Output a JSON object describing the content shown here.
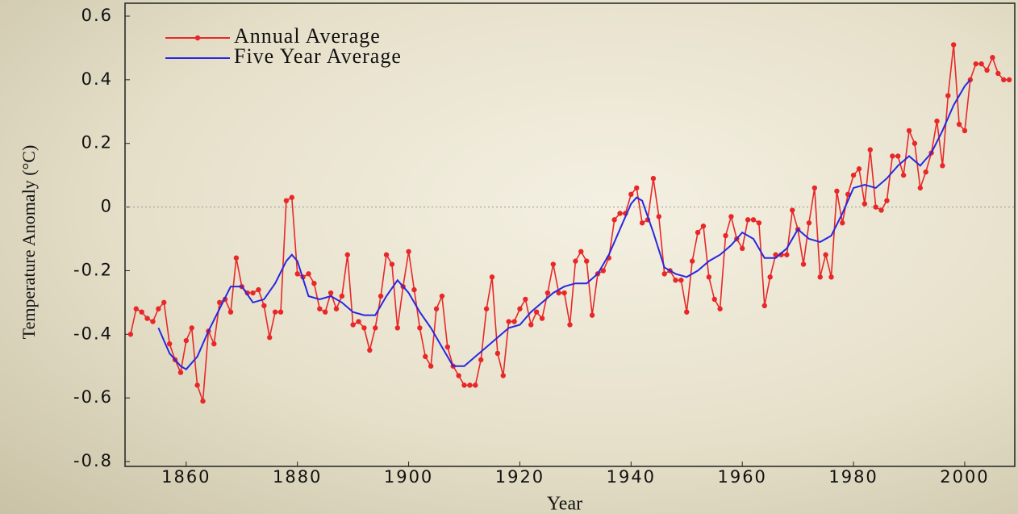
{
  "chart_data": {
    "type": "line",
    "x_label": "Year",
    "y_label": "Temperature Anomaly (°C)",
    "xlim": [
      1849,
      2009
    ],
    "ylim": [
      -0.8,
      0.6
    ],
    "xticks": [
      1860,
      1880,
      1900,
      1920,
      1940,
      1960,
      1980,
      2000
    ],
    "yticks": [
      -0.8,
      -0.6,
      -0.4,
      -0.2,
      0,
      0.2,
      0.4,
      0.6
    ],
    "zero_line": true,
    "legend": "top-left",
    "series": [
      {
        "name": "Annual Average",
        "color": "#e82828",
        "markers": true,
        "x": [
          1850,
          1851,
          1852,
          1853,
          1854,
          1855,
          1856,
          1857,
          1858,
          1859,
          1860,
          1861,
          1862,
          1863,
          1864,
          1865,
          1866,
          1867,
          1868,
          1869,
          1870,
          1871,
          1872,
          1873,
          1874,
          1875,
          1876,
          1877,
          1878,
          1879,
          1880,
          1881,
          1882,
          1883,
          1884,
          1885,
          1886,
          1887,
          1888,
          1889,
          1890,
          1891,
          1892,
          1893,
          1894,
          1895,
          1896,
          1897,
          1898,
          1899,
          1900,
          1901,
          1902,
          1903,
          1904,
          1905,
          1906,
          1907,
          1908,
          1909,
          1910,
          1911,
          1912,
          1913,
          1914,
          1915,
          1916,
          1917,
          1918,
          1919,
          1920,
          1921,
          1922,
          1923,
          1924,
          1925,
          1926,
          1927,
          1928,
          1929,
          1930,
          1931,
          1932,
          1933,
          1934,
          1935,
          1936,
          1937,
          1938,
          1939,
          1940,
          1941,
          1942,
          1943,
          1944,
          1945,
          1946,
          1947,
          1948,
          1949,
          1950,
          1951,
          1952,
          1953,
          1954,
          1955,
          1956,
          1957,
          1958,
          1959,
          1960,
          1961,
          1962,
          1963,
          1964,
          1965,
          1966,
          1967,
          1968,
          1969,
          1970,
          1971,
          1972,
          1973,
          1974,
          1975,
          1976,
          1977,
          1978,
          1979,
          1980,
          1981,
          1982,
          1983,
          1984,
          1985,
          1986,
          1987,
          1988,
          1989,
          1990,
          1991,
          1992,
          1993,
          1994,
          1995,
          1996,
          1997,
          1998,
          1999,
          2000,
          2001,
          2002,
          2003,
          2004,
          2005,
          2006,
          2007,
          2008
        ],
        "values": [
          -0.4,
          -0.32,
          -0.33,
          -0.35,
          -0.36,
          -0.32,
          -0.3,
          -0.43,
          -0.48,
          -0.52,
          -0.42,
          -0.38,
          -0.56,
          -0.61,
          -0.39,
          -0.43,
          -0.3,
          -0.29,
          -0.33,
          -0.16,
          -0.25,
          -0.27,
          -0.27,
          -0.26,
          -0.31,
          -0.41,
          -0.33,
          -0.33,
          0.02,
          0.03,
          -0.21,
          -0.22,
          -0.21,
          -0.24,
          -0.32,
          -0.33,
          -0.27,
          -0.32,
          -0.28,
          -0.15,
          -0.37,
          -0.36,
          -0.38,
          -0.45,
          -0.38,
          -0.28,
          -0.15,
          -0.18,
          -0.38,
          -0.25,
          -0.14,
          -0.26,
          -0.38,
          -0.47,
          -0.5,
          -0.32,
          -0.28,
          -0.44,
          -0.5,
          -0.53,
          -0.56,
          -0.56,
          -0.56,
          -0.48,
          -0.32,
          -0.22,
          -0.46,
          -0.53,
          -0.36,
          -0.36,
          -0.32,
          -0.29,
          -0.37,
          -0.33,
          -0.35,
          -0.27,
          -0.18,
          -0.27,
          -0.27,
          -0.37,
          -0.17,
          -0.14,
          -0.17,
          -0.34,
          -0.21,
          -0.2,
          -0.16,
          -0.04,
          -0.02,
          -0.02,
          0.04,
          0.06,
          -0.05,
          -0.04,
          0.09,
          -0.03,
          -0.21,
          -0.2,
          -0.23,
          -0.23,
          -0.33,
          -0.17,
          -0.08,
          -0.06,
          -0.22,
          -0.29,
          -0.32,
          -0.09,
          -0.03,
          -0.1,
          -0.13,
          -0.04,
          -0.04,
          -0.05,
          -0.31,
          -0.22,
          -0.15,
          -0.15,
          -0.15,
          -0.01,
          -0.07,
          -0.18,
          -0.05,
          0.06,
          -0.22,
          -0.15,
          -0.22,
          0.05,
          -0.05,
          0.04,
          0.1,
          0.12,
          0.01,
          0.18,
          0.0,
          -0.01,
          0.02,
          0.16,
          0.16,
          0.1,
          0.24,
          0.2,
          0.06,
          0.11,
          0.17,
          0.27,
          0.13,
          0.35,
          0.51,
          0.26,
          0.24,
          0.4,
          0.45,
          0.45,
          0.43,
          0.47,
          0.42,
          0.4,
          0.4
        ]
      },
      {
        "name": "Five Year Average",
        "color": "#2828e0",
        "markers": false,
        "x": [
          1855,
          1857,
          1859,
          1860,
          1862,
          1864,
          1866,
          1868,
          1870,
          1872,
          1874,
          1876,
          1878,
          1879,
          1880,
          1882,
          1884,
          1886,
          1888,
          1890,
          1892,
          1894,
          1896,
          1898,
          1900,
          1902,
          1904,
          1906,
          1908,
          1910,
          1912,
          1914,
          1916,
          1918,
          1920,
          1922,
          1924,
          1926,
          1928,
          1930,
          1932,
          1934,
          1936,
          1938,
          1940,
          1941,
          1942,
          1944,
          1946,
          1948,
          1950,
          1952,
          1954,
          1956,
          1958,
          1960,
          1962,
          1964,
          1966,
          1968,
          1970,
          1972,
          1974,
          1976,
          1978,
          1980,
          1982,
          1984,
          1986,
          1988,
          1990,
          1992,
          1994,
          1996,
          1998,
          2000,
          2001
        ],
        "values": [
          -0.38,
          -0.46,
          -0.5,
          -0.51,
          -0.47,
          -0.39,
          -0.32,
          -0.25,
          -0.25,
          -0.3,
          -0.29,
          -0.24,
          -0.17,
          -0.15,
          -0.17,
          -0.28,
          -0.29,
          -0.28,
          -0.3,
          -0.33,
          -0.34,
          -0.34,
          -0.28,
          -0.23,
          -0.27,
          -0.33,
          -0.38,
          -0.44,
          -0.5,
          -0.5,
          -0.47,
          -0.44,
          -0.41,
          -0.38,
          -0.37,
          -0.33,
          -0.3,
          -0.27,
          -0.25,
          -0.24,
          -0.24,
          -0.21,
          -0.15,
          -0.07,
          0.01,
          0.03,
          0.02,
          -0.08,
          -0.19,
          -0.21,
          -0.22,
          -0.2,
          -0.17,
          -0.15,
          -0.12,
          -0.08,
          -0.1,
          -0.16,
          -0.16,
          -0.13,
          -0.07,
          -0.1,
          -0.11,
          -0.09,
          -0.02,
          0.06,
          0.07,
          0.06,
          0.09,
          0.13,
          0.16,
          0.13,
          0.17,
          0.24,
          0.32,
          0.38,
          0.4
        ]
      }
    ]
  }
}
